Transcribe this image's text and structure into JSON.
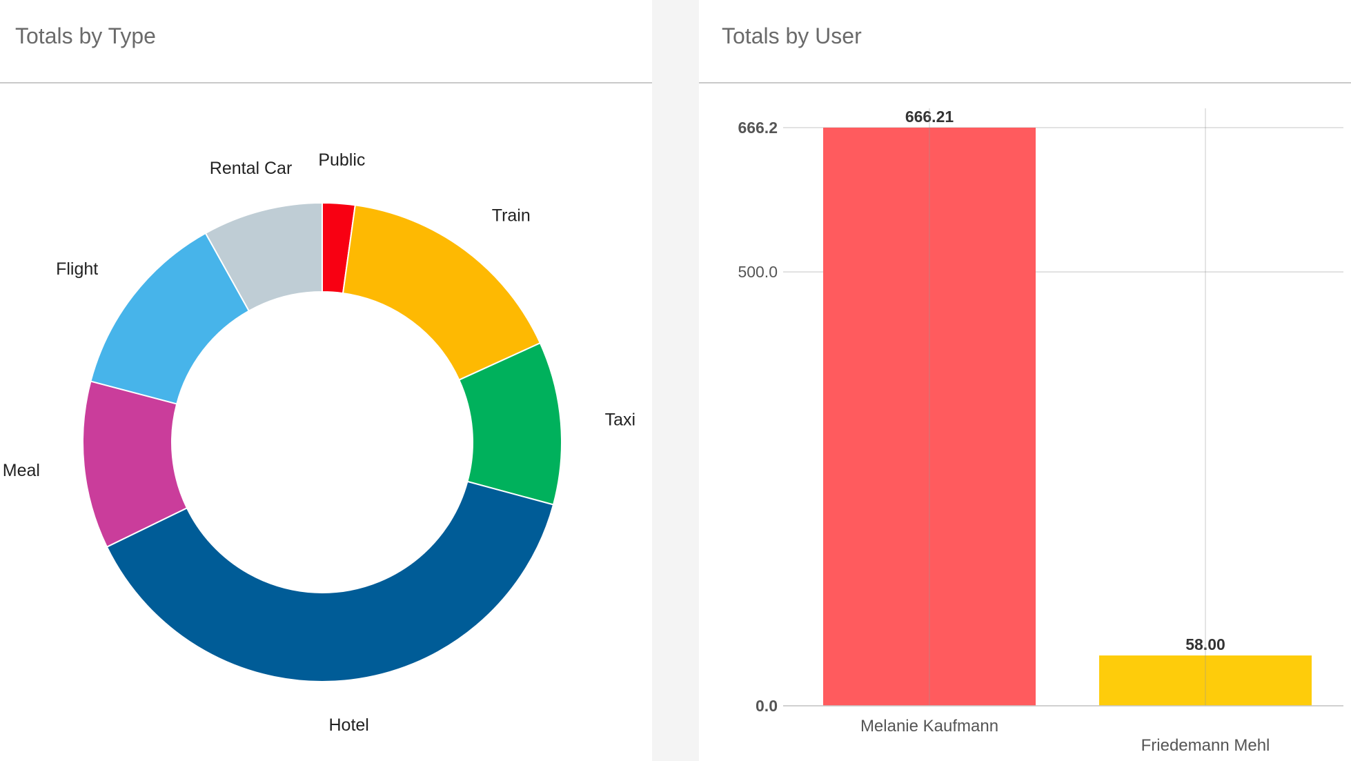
{
  "panels": {
    "left": {
      "title": "Totals by Type"
    },
    "right": {
      "title": "Totals by User"
    }
  },
  "chart_data": [
    {
      "type": "pie",
      "variant": "donut",
      "title": "Totals by Type",
      "categories": [
        "Public",
        "Train",
        "Taxi",
        "Hotel",
        "Meal",
        "Flight",
        "Rental Car"
      ],
      "values": [
        2.2,
        16.0,
        11.0,
        38.6,
        11.3,
        12.8,
        8.1
      ],
      "colors": [
        "#f80012",
        "#feb902",
        "#00b15c",
        "#005c97",
        "#ca3d9b",
        "#47b4ea",
        "#bfcdd5"
      ],
      "legend": "none"
    },
    {
      "type": "bar",
      "title": "Totals by User",
      "categories": [
        "Melanie Kaufmann",
        "Friedemann Mehl"
      ],
      "values": [
        666.21,
        58.0
      ],
      "value_labels": [
        "666.21",
        "58.00"
      ],
      "colors": [
        "#ff5b5e",
        "#fecc0b"
      ],
      "yticks": [
        {
          "value": 0,
          "label": "0.0",
          "bold": true
        },
        {
          "value": 500,
          "label": "500.0",
          "bold": false
        },
        {
          "value": 666.2,
          "label": "666.2",
          "bold": true
        }
      ],
      "ylim": [
        0,
        666.21
      ],
      "grid": true,
      "legend": "none"
    }
  ]
}
